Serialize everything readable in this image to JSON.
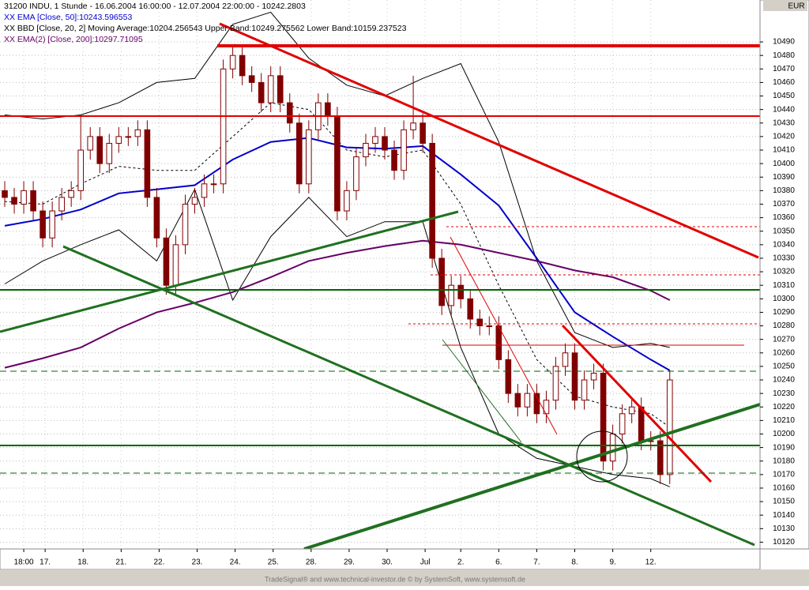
{
  "chart_data": {
    "type": "candlestick",
    "title": "31200  INDU, 1 Stunde - 16.06.2004 16:00:00 - 12.07.2004 22:00:00 - 10242.2803",
    "currency": "EUR",
    "footer": "TradeSignal® and www.technical-investor.de © by SystemSoft, www.systemsoft.de",
    "color": "#800000",
    "x": [
      0,
      1,
      2,
      3,
      4,
      5,
      6,
      7,
      8,
      9,
      10,
      11,
      12,
      13,
      14,
      15,
      16,
      17,
      18,
      19,
      20,
      21,
      22,
      23,
      24,
      25,
      26,
      27,
      28,
      29,
      30,
      31,
      32,
      33,
      34,
      35,
      36,
      37,
      38,
      39,
      40,
      41,
      42,
      43,
      44,
      45,
      46,
      47,
      48,
      49,
      50,
      51,
      52,
      53,
      54,
      55,
      56,
      57,
      58,
      59,
      60,
      61,
      62,
      63,
      64,
      65,
      66,
      67,
      68,
      69,
      70
    ],
    "open": [
      10380,
      10375,
      10370,
      10380,
      10365,
      10345,
      10365,
      10375,
      10380,
      10410,
      10420,
      10400,
      10415,
      10420,
      10420,
      10425,
      10375,
      10345,
      10310,
      10340,
      10370,
      10375,
      10385,
      10385,
      10470,
      10480,
      10465,
      10460,
      10445,
      10465,
      10445,
      10430,
      10385,
      10425,
      10445,
      10435,
      10365,
      10380,
      10405,
      10415,
      10420,
      10410,
      10395,
      10425,
      10430,
      10415,
      10330,
      10295,
      10310,
      10300,
      10285,
      10280,
      10280,
      10255,
      10230,
      10220,
      10230,
      10215,
      10225,
      10250,
      10260,
      10225,
      10240,
      10245,
      10180,
      10200,
      10215,
      10220,
      10195,
      10195,
      10170
    ],
    "high": [
      10387,
      10382,
      10387,
      10387,
      10372,
      10372,
      10382,
      10387,
      10435,
      10427,
      10427,
      10422,
      10427,
      10427,
      10432,
      10432,
      10382,
      10352,
      10347,
      10377,
      10382,
      10392,
      10392,
      10477,
      10487,
      10487,
      10472,
      10467,
      10472,
      10472,
      10452,
      10437,
      10432,
      10452,
      10452,
      10442,
      10387,
      10412,
      10422,
      10427,
      10427,
      10417,
      10432,
      10465,
      10437,
      10422,
      10337,
      10317,
      10317,
      10307,
      10292,
      10287,
      10287,
      10262,
      10237,
      10237,
      10237,
      10232,
      10257,
      10267,
      10267,
      10247,
      10252,
      10252,
      10207,
      10222,
      10227,
      10227,
      10202,
      10202,
      10247
    ],
    "low": [
      10368,
      10363,
      10363,
      10358,
      10338,
      10338,
      10358,
      10368,
      10373,
      10403,
      10393,
      10393,
      10408,
      10413,
      10413,
      10368,
      10338,
      10303,
      10303,
      10333,
      10363,
      10368,
      10378,
      10378,
      10463,
      10458,
      10453,
      10438,
      10438,
      10438,
      10423,
      10378,
      10378,
      10418,
      10428,
      10358,
      10358,
      10373,
      10398,
      10408,
      10403,
      10388,
      10388,
      10418,
      10408,
      10323,
      10288,
      10288,
      10293,
      10278,
      10273,
      10273,
      10248,
      10223,
      10213,
      10213,
      10208,
      10208,
      10218,
      10243,
      10218,
      10218,
      10233,
      10173,
      10173,
      10193,
      10208,
      10188,
      10188,
      10163,
      10163
    ],
    "close": [
      10375,
      10370,
      10380,
      10365,
      10345,
      10365,
      10375,
      10380,
      10410,
      10420,
      10400,
      10415,
      10420,
      10420,
      10425,
      10375,
      10345,
      10310,
      10340,
      10370,
      10375,
      10385,
      10385,
      10470,
      10480,
      10465,
      10460,
      10445,
      10465,
      10445,
      10430,
      10385,
      10425,
      10445,
      10435,
      10365,
      10380,
      10405,
      10415,
      10420,
      10410,
      10395,
      10425,
      10430,
      10415,
      10330,
      10295,
      10310,
      10300,
      10285,
      10280,
      10280,
      10255,
      10230,
      10220,
      10230,
      10215,
      10225,
      10250,
      10260,
      10225,
      10240,
      10245,
      10180,
      10200,
      10215,
      10220,
      10195,
      10195,
      10170,
      10240
    ],
    "overlays": [
      {
        "name": "XX EMA [Close, 50]:10243.596553",
        "color": "#0000cc",
        "width": 2,
        "x": [
          0,
          4,
          8,
          12,
          16,
          20,
          24,
          28,
          32,
          36,
          40,
          44,
          48,
          52,
          56,
          60,
          64,
          68,
          70
        ],
        "values": [
          10354,
          10359,
          10366,
          10378,
          10381,
          10384,
          10403,
          10416,
          10419,
          10412,
          10411,
          10413,
          10392,
          10369,
          10330,
          10290,
          10272,
          10255,
          10247
        ]
      },
      {
        "name": "XX EMA(2) [Close, 200]:10297.71095",
        "color": "#660066",
        "width": 2,
        "x": [
          0,
          4,
          8,
          12,
          16,
          20,
          24,
          28,
          32,
          36,
          40,
          44,
          48,
          52,
          56,
          60,
          64,
          68,
          70
        ],
        "values": [
          10249,
          10256,
          10264,
          10278,
          10290,
          10297,
          10305,
          10316,
          10328,
          10334,
          10339,
          10343,
          10340,
          10334,
          10328,
          10321,
          10316,
          10306,
          10299
        ]
      }
    ],
    "bands": {
      "name": "XX BBD [Close, 20, 2] Moving Average:10204.256543 Upper Band:10249.275562 Lower Band:10159.237523",
      "color": "#000000",
      "x": [
        0,
        4,
        8,
        12,
        16,
        20,
        24,
        28,
        32,
        36,
        40,
        44,
        48,
        52,
        56,
        60,
        64,
        68,
        70
      ],
      "upper": [
        10436,
        10433,
        10436,
        10445,
        10460,
        10463,
        10503,
        10512,
        10478,
        10458,
        10450,
        10463,
        10474,
        10416,
        10328,
        10275,
        10264,
        10267,
        10264
      ],
      "middle": [
        10372,
        10370,
        10385,
        10398,
        10395,
        10395,
        10420,
        10445,
        10440,
        10410,
        10405,
        10410,
        10370,
        10310,
        10255,
        10228,
        10220,
        10215,
        10205
      ],
      "lower": [
        10311,
        10328,
        10340,
        10351,
        10328,
        10381,
        10299,
        10346,
        10375,
        10346,
        10357,
        10357,
        10264,
        10200,
        10182,
        10176,
        10170,
        10167,
        10161
      ]
    },
    "xlim": [
      -0.5,
      79.5
    ],
    "ylim": [
      10115,
      10521
    ],
    "xticks": [
      {
        "value": 2,
        "label": "18:00"
      },
      {
        "value": 4.25,
        "label": "17."
      },
      {
        "value": 8.25,
        "label": "18."
      },
      {
        "value": 12.25,
        "label": "21."
      },
      {
        "value": 16.25,
        "label": "22."
      },
      {
        "value": 20.25,
        "label": "23."
      },
      {
        "value": 24.25,
        "label": "24."
      },
      {
        "value": 28.25,
        "label": "25."
      },
      {
        "value": 32.25,
        "label": "28."
      },
      {
        "value": 36.25,
        "label": "29."
      },
      {
        "value": 40.25,
        "label": "30."
      },
      {
        "value": 44.25,
        "label": "Jul"
      },
      {
        "value": 48,
        "label": "2."
      },
      {
        "value": 52,
        "label": "6."
      },
      {
        "value": 56,
        "label": "7."
      },
      {
        "value": 60,
        "label": "8."
      },
      {
        "value": 64,
        "label": "9."
      },
      {
        "value": 68,
        "label": "12."
      }
    ],
    "yticks": [
      10120,
      10130,
      10140,
      10150,
      10160,
      10170,
      10180,
      10190,
      10200,
      10210,
      10220,
      10230,
      10240,
      10250,
      10260,
      10270,
      10280,
      10290,
      10300,
      10310,
      10320,
      10330,
      10340,
      10350,
      10360,
      10370,
      10380,
      10390,
      10400,
      10410,
      10420,
      10430,
      10440,
      10450,
      10460,
      10470,
      10480,
      10490
    ],
    "grid": true
  }
}
